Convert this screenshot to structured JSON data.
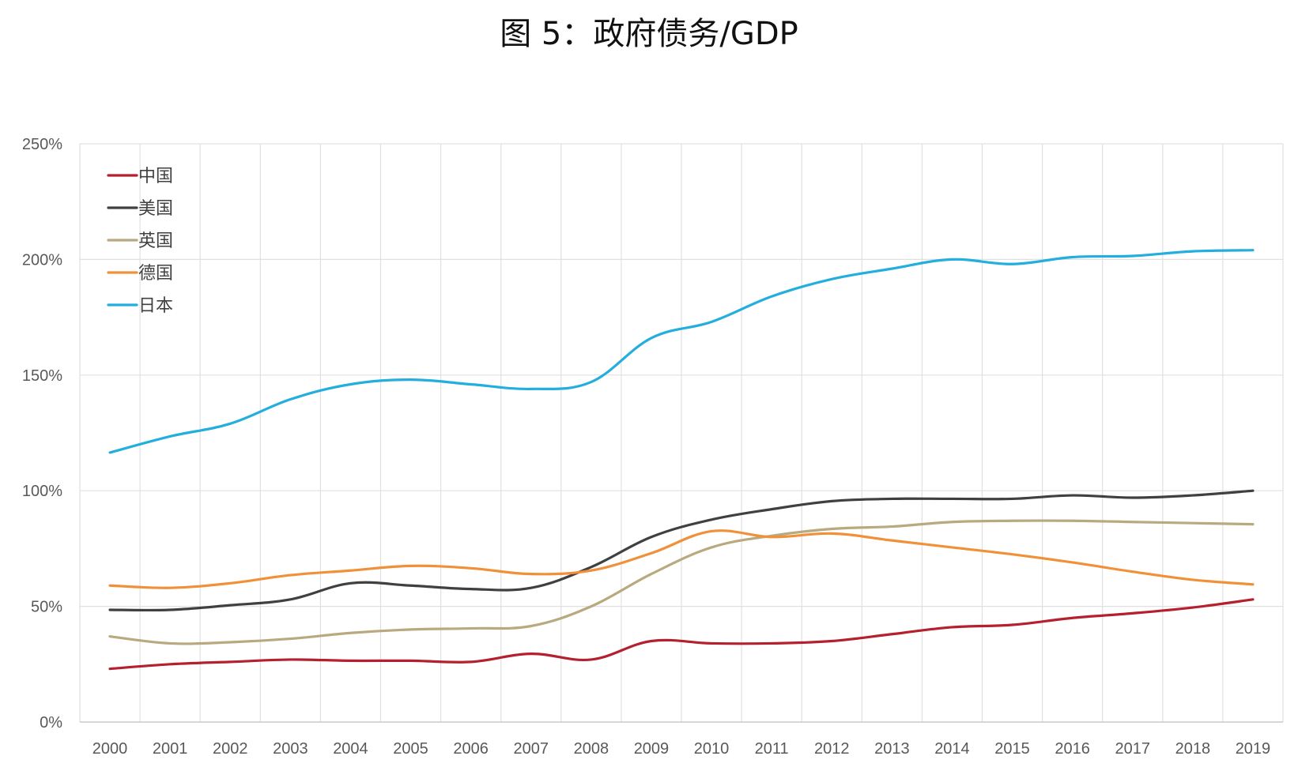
{
  "chart_data": {
    "type": "line",
    "title": "图 5：政府债务/GDP",
    "xlabel": "",
    "ylabel": "",
    "ylim": [
      0,
      250
    ],
    "y_ticks": [
      "0%",
      "50%",
      "100%",
      "150%",
      "200%",
      "250%"
    ],
    "y_tick_values": [
      0,
      50,
      100,
      150,
      200,
      250
    ],
    "categories": [
      "2000",
      "2001",
      "2002",
      "2003",
      "2004",
      "2005",
      "2006",
      "2007",
      "2008",
      "2009",
      "2010",
      "2011",
      "2012",
      "2013",
      "2014",
      "2015",
      "2016",
      "2017",
      "2018",
      "2019"
    ],
    "grid": true,
    "legend_position": "top-left",
    "series": [
      {
        "name": "中国",
        "color": "#B5202E",
        "values": [
          23,
          25,
          26,
          27,
          26.5,
          26.5,
          26,
          29.5,
          27,
          35,
          34,
          34,
          35,
          38,
          41,
          42,
          45,
          47,
          49.5,
          53
        ]
      },
      {
        "name": "美国",
        "color": "#404040",
        "values": [
          48.5,
          48.5,
          50.5,
          53,
          60,
          59,
          57.5,
          58,
          67,
          80,
          87.5,
          92,
          95.5,
          96.5,
          96.5,
          96.5,
          98,
          97,
          98,
          100
        ]
      },
      {
        "name": "英国",
        "color": "#B8A97F",
        "values": [
          37,
          34,
          34.5,
          36,
          38.5,
          40,
          40.5,
          41.5,
          50,
          64,
          75.5,
          80.5,
          83.5,
          84.5,
          86.5,
          87,
          87,
          86.5,
          86,
          85.5
        ]
      },
      {
        "name": "德国",
        "color": "#F0913A",
        "values": [
          59,
          58,
          60,
          63.5,
          65.5,
          67.5,
          66.5,
          64,
          65.5,
          73,
          82.5,
          80,
          81.5,
          78.5,
          75.5,
          72.5,
          69,
          65,
          61.5,
          59.5
        ]
      },
      {
        "name": "日本",
        "color": "#24AEDE",
        "values": [
          116.5,
          123.5,
          129,
          139.5,
          146,
          148,
          146,
          144,
          147,
          166,
          173,
          184,
          191.5,
          196,
          200,
          198,
          201,
          201.5,
          203.5,
          204
        ]
      }
    ]
  }
}
